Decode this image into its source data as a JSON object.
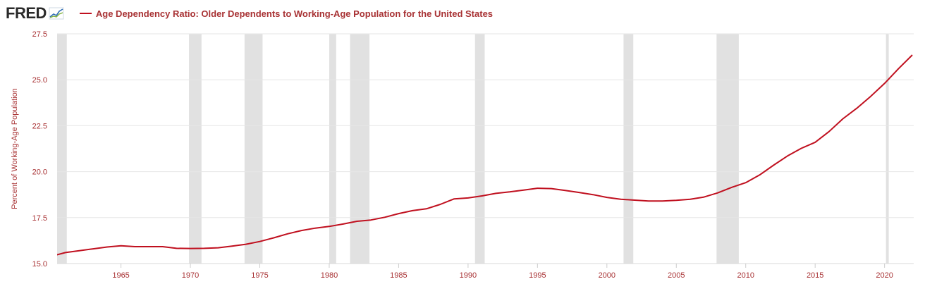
{
  "header": {
    "logo_text": "FRED",
    "legend_label": "Age Dependency Ratio: Older Dependents to Working-Age Population for the United States"
  },
  "colors": {
    "series": "#c0101f",
    "text": "#a83234",
    "recession": "#e1e1e1",
    "grid": "#e6e6e6"
  },
  "chart_data": {
    "type": "line",
    "title": "",
    "xlabel": "",
    "ylabel": "Percent of Working-Age Population",
    "xlim": [
      1960.4,
      2022.1
    ],
    "ylim": [
      15.0,
      27.5
    ],
    "y_ticks": [
      "15.0",
      "17.5",
      "20.0",
      "22.5",
      "25.0",
      "27.5"
    ],
    "x_ticks": [
      "1965",
      "1970",
      "1975",
      "1980",
      "1985",
      "1990",
      "1995",
      "2000",
      "2005",
      "2010",
      "2015",
      "2020"
    ],
    "grid": "horizontal",
    "legend_position": "top-left",
    "recessions": [
      [
        1960.3,
        1961.1
      ],
      [
        1969.9,
        1970.8
      ],
      [
        1973.9,
        1975.2
      ],
      [
        1980.0,
        1980.5
      ],
      [
        1981.5,
        1982.9
      ],
      [
        1990.5,
        1991.2
      ],
      [
        2001.2,
        2001.9
      ],
      [
        2007.9,
        2009.5
      ],
      [
        2020.1,
        2020.3
      ]
    ],
    "series": [
      {
        "name": "Age Dependency Ratio: Older Dependents to Working-Age Population for the United States",
        "x": [
          1960,
          1961,
          1962,
          1963,
          1964,
          1965,
          1966,
          1967,
          1968,
          1969,
          1970,
          1971,
          1972,
          1973,
          1974,
          1975,
          1976,
          1977,
          1978,
          1979,
          1980,
          1981,
          1982,
          1983,
          1984,
          1985,
          1986,
          1987,
          1988,
          1989,
          1990,
          1991,
          1992,
          1993,
          1994,
          1995,
          1996,
          1997,
          1998,
          1999,
          2000,
          2001,
          2002,
          2003,
          2004,
          2005,
          2006,
          2007,
          2008,
          2009,
          2010,
          2011,
          2012,
          2013,
          2014,
          2015,
          2016,
          2017,
          2018,
          2019,
          2020,
          2021,
          2022
        ],
        "values": [
          15.4,
          15.6,
          15.7,
          15.8,
          15.9,
          15.97,
          15.92,
          15.92,
          15.92,
          15.83,
          15.82,
          15.83,
          15.86,
          15.95,
          16.05,
          16.2,
          16.4,
          16.62,
          16.8,
          16.93,
          17.02,
          17.15,
          17.3,
          17.37,
          17.52,
          17.72,
          17.88,
          17.98,
          18.22,
          18.52,
          18.57,
          18.68,
          18.82,
          18.9,
          19.0,
          19.1,
          19.08,
          18.98,
          18.87,
          18.75,
          18.6,
          18.5,
          18.45,
          18.4,
          18.4,
          18.44,
          18.5,
          18.62,
          18.85,
          19.15,
          19.4,
          19.82,
          20.35,
          20.85,
          21.27,
          21.6,
          22.18,
          22.88,
          23.45,
          24.1,
          24.8,
          25.6,
          26.35
        ]
      }
    ]
  }
}
